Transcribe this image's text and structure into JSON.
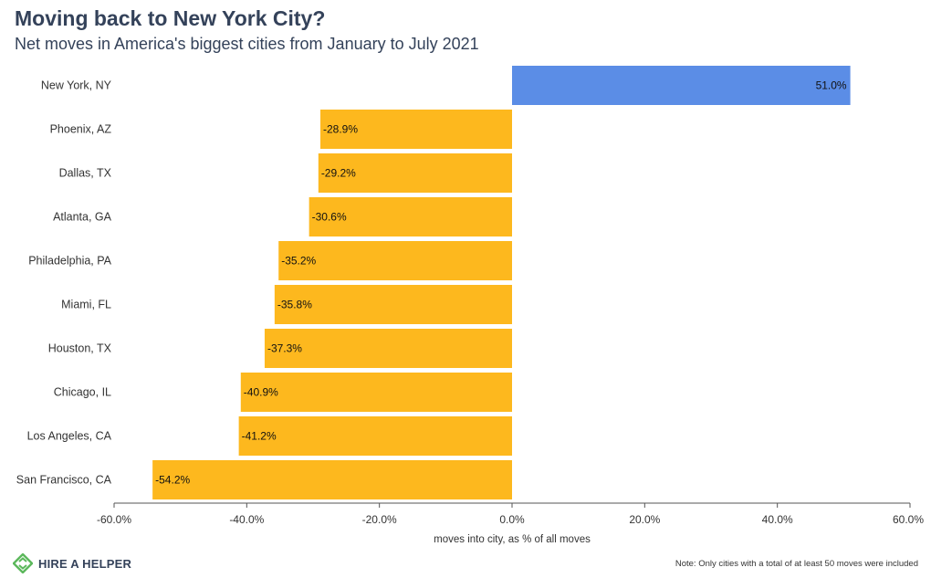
{
  "header": {
    "title": "Moving back to New York City?",
    "subtitle": "Net moves in America's biggest cities from January to July 2021"
  },
  "chart_data": {
    "type": "bar",
    "orientation": "horizontal",
    "categories": [
      "New York, NY",
      "Phoenix, AZ",
      "Dallas, TX",
      "Atlanta, GA",
      "Philadelphia, PA",
      "Miami, FL",
      "Houston, TX",
      "Chicago, IL",
      "Los Angeles, CA",
      "San Francisco, CA"
    ],
    "values": [
      51.0,
      -28.9,
      -29.2,
      -30.6,
      -35.2,
      -35.8,
      -37.3,
      -40.9,
      -41.2,
      -54.2
    ],
    "data_labels": [
      "51.0%",
      "-28.9%",
      "-29.2%",
      "-30.6%",
      "-35.2%",
      "-35.8%",
      "-37.3%",
      "-40.9%",
      "-41.2%",
      "-54.2%"
    ],
    "xlabel": "moves into city, as % of all moves",
    "xlim": [
      -60,
      60
    ],
    "xticks": [
      -60,
      -40,
      -20,
      0,
      20,
      40,
      60
    ],
    "xtick_labels": [
      "-60.0%",
      "-40.0%",
      "-20.0%",
      "0.0%",
      "20.0%",
      "40.0%",
      "60.0%"
    ],
    "colors": {
      "positive": "#5b8de6",
      "negative": "#fdb81e"
    },
    "grid": false
  },
  "footer": {
    "logo_text": "HIRE A HELPER",
    "note": "Note: Only cities with a total of at least 50 moves were included"
  }
}
